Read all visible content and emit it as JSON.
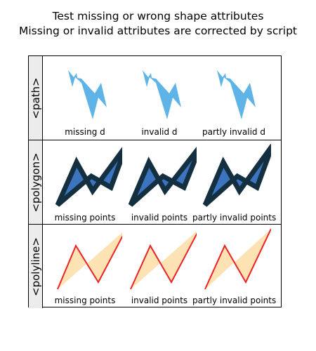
{
  "title_line1": "Test missing or wrong shape attributes",
  "title_line2": "Missing or invalid attributes are corrected by script",
  "rows": [
    {
      "header": "<path>",
      "labels": [
        "missing d",
        "invalid d",
        "partly invalid d"
      ],
      "fill": "#5eb4e6",
      "stroke": "none"
    },
    {
      "header": "<polygon>",
      "labels": [
        "missing points",
        "invalid points",
        "partly invalid points"
      ],
      "fill": "#3c74c0",
      "stroke": "#143040"
    },
    {
      "header": "<polyline>",
      "labels": [
        "missing points",
        "invalid points",
        "partly invalid points"
      ],
      "fill": "#fde2b4",
      "stroke": "#ee2222"
    }
  ]
}
